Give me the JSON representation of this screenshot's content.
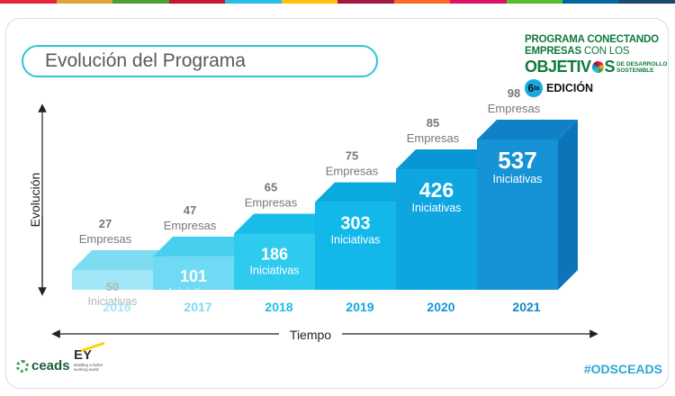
{
  "title": "Evolución del Programa",
  "logo": {
    "line1": "PROGRAMA CONECTANDO",
    "line2_bold": "EMPRESAS",
    "line2_thin": " CON LOS",
    "line3a": "OBJETIV",
    "line3b": "S",
    "line3_small1": "DE DESARROLLO",
    "line3_small2": "SOSTENIBLE",
    "edition_num": "6",
    "edition_sup": "ta",
    "edition_word": "EDICIÓN"
  },
  "chart_data": {
    "type": "bar",
    "categories": [
      "2016",
      "2017",
      "2018",
      "2019",
      "2020",
      "2021"
    ],
    "series": [
      {
        "name": "Empresas",
        "values": [
          27,
          47,
          65,
          75,
          85,
          98
        ]
      },
      {
        "name": "Iniciativas",
        "values": [
          50,
          101,
          186,
          303,
          426,
          537
        ]
      }
    ],
    "top_unit": "Empresas",
    "bar_unit": "Iniciativas",
    "xlabel": "Tiempo",
    "ylabel": "Evolución",
    "colors": {
      "front": [
        "#9fe7f7",
        "#6fdaf3",
        "#2fcbee",
        "#12b8e9",
        "#0ea6e1",
        "#1693d6"
      ],
      "top": [
        "#7ddcf2",
        "#49cfee",
        "#17bde6",
        "#0aa9de",
        "#0996d4",
        "#0f82c7"
      ],
      "side": [
        "#6fd3ec",
        "#3cc4e7",
        "#11b0dc",
        "#0a9bd2",
        "#0888c6",
        "#0c74b9"
      ],
      "year": [
        "#a8e6f5",
        "#7fd8f0",
        "#22bde6",
        "#0fa8df",
        "#0f98d8",
        "#1187cc"
      ],
      "inner_label_light": "#b5b5b5",
      "inner_label": "#ffffff",
      "top_label": "#777777"
    }
  },
  "footer": {
    "ceads": "ceads",
    "ey_main": "EY",
    "ey_sub1": "Building a better",
    "ey_sub2": "working world",
    "hashtag": "#ODSCEADS"
  }
}
